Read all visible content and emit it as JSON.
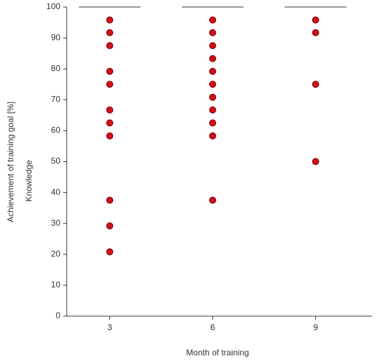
{
  "chart_data": {
    "type": "box",
    "y_label": "Achievement of training goal [%]",
    "y_sublabel": "Knowledge",
    "x_label": "Month of training",
    "categories": [
      "3",
      "6",
      "9"
    ],
    "medians": [
      100,
      100,
      100
    ],
    "points": [
      [
        95.8,
        91.7,
        87.5,
        79.2,
        75,
        66.7,
        62.5,
        58.3,
        37.5,
        29.2,
        20.8
      ],
      [
        95.8,
        91.7,
        87.5,
        83.3,
        79.2,
        75,
        70.8,
        66.7,
        62.5,
        58.3,
        37.5
      ],
      [
        95.8,
        91.7,
        75,
        50
      ]
    ],
    "color": "#d0101a",
    "ylim": [
      0,
      100
    ],
    "yticks": [
      0,
      10,
      20,
      30,
      40,
      50,
      60,
      70,
      80,
      90,
      100
    ],
    "grid": false
  }
}
